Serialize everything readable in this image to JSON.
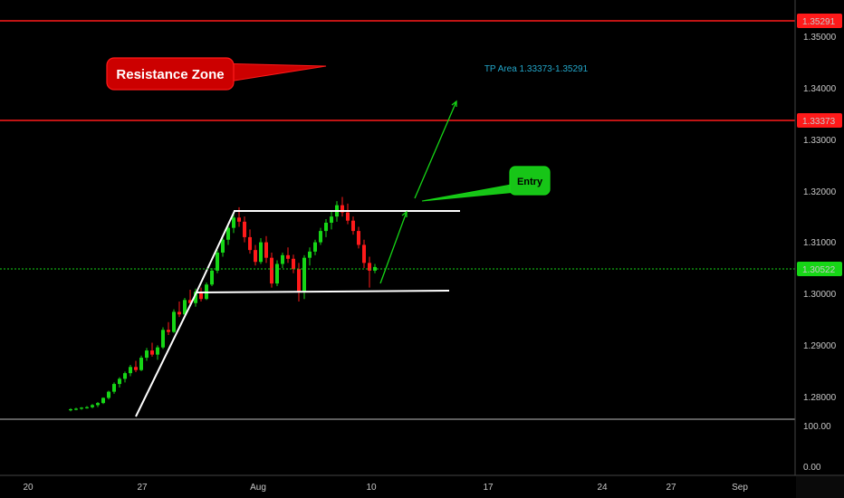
{
  "chart_data": {
    "type": "candlestick",
    "x_ticks": [
      "20",
      "27",
      "Aug",
      "10",
      "17",
      "24",
      "27",
      "Sep"
    ],
    "price_ticks": [
      "1.35000",
      "1.34000",
      "1.33000",
      "1.32000",
      "1.31000",
      "1.30000",
      "1.29000",
      "1.28000"
    ],
    "ylim": [
      1.275,
      1.3565
    ],
    "indicator_ticks": [
      "100.00",
      "0.00"
    ],
    "levels": [
      {
        "label": "1.35291",
        "value": 1.35291,
        "color": "#ff1a1a",
        "style": "solid"
      },
      {
        "label": "1.33373",
        "value": 1.33373,
        "color": "#ff1a1a",
        "style": "solid"
      },
      {
        "label": "1.30522",
        "value": 1.30522,
        "color": "#16d616",
        "style": "dotted"
      }
    ],
    "channel": {
      "top": 1.3164,
      "bottom": 1.3008
    },
    "annotations": {
      "resistance": "Resistance Zone",
      "tp_area": "TP Area 1.33373-1.35291",
      "entry": "Entry"
    },
    "candles": [
      [
        1.2775,
        1.2778,
        1.2772,
        1.2776
      ],
      [
        1.2776,
        1.2779,
        1.2774,
        1.2777
      ],
      [
        1.2777,
        1.278,
        1.2775,
        1.2779
      ],
      [
        1.2779,
        1.2782,
        1.2777,
        1.278
      ],
      [
        1.278,
        1.2786,
        1.2778,
        1.2784
      ],
      [
        1.2784,
        1.279,
        1.278,
        1.2788
      ],
      [
        1.2788,
        1.2799,
        1.2786,
        1.2798
      ],
      [
        1.2798,
        1.2812,
        1.2795,
        1.281
      ],
      [
        1.281,
        1.2828,
        1.2806,
        1.2825
      ],
      [
        1.2825,
        1.2838,
        1.2818,
        1.2835
      ],
      [
        1.2835,
        1.2849,
        1.2828,
        1.2846
      ],
      [
        1.2846,
        1.2862,
        1.284,
        1.2858
      ],
      [
        1.2858,
        1.287,
        1.2848,
        1.2852
      ],
      [
        1.2852,
        1.288,
        1.285,
        1.2876
      ],
      [
        1.2876,
        1.2895,
        1.287,
        1.289
      ],
      [
        1.289,
        1.2905,
        1.2878,
        1.2882
      ],
      [
        1.2882,
        1.29,
        1.2872,
        1.2896
      ],
      [
        1.2896,
        1.2935,
        1.2893,
        1.293
      ],
      [
        1.293,
        1.2945,
        1.292,
        1.2926
      ],
      [
        1.2926,
        1.297,
        1.2924,
        1.2965
      ],
      [
        1.2965,
        1.2985,
        1.2955,
        1.296
      ],
      [
        1.296,
        1.2992,
        1.2955,
        1.2988
      ],
      [
        1.2988,
        1.3008,
        1.2978,
        1.2982
      ],
      [
        1.2982,
        1.301,
        1.2975,
        1.3004
      ],
      [
        1.3004,
        1.3012,
        1.2985,
        1.299
      ],
      [
        1.299,
        1.3022,
        1.2988,
        1.3018
      ],
      [
        1.3018,
        1.305,
        1.3015,
        1.3045
      ],
      [
        1.3045,
        1.3085,
        1.304,
        1.308
      ],
      [
        1.308,
        1.311,
        1.3072,
        1.3105
      ],
      [
        1.3105,
        1.3135,
        1.3095,
        1.3128
      ],
      [
        1.3128,
        1.3155,
        1.3118,
        1.3148
      ],
      [
        1.3148,
        1.3168,
        1.313,
        1.314
      ],
      [
        1.314,
        1.315,
        1.31,
        1.311
      ],
      [
        1.311,
        1.3125,
        1.3078,
        1.3085
      ],
      [
        1.3085,
        1.3095,
        1.3055,
        1.3062
      ],
      [
        1.3062,
        1.3108,
        1.3058,
        1.31
      ],
      [
        1.31,
        1.3112,
        1.306,
        1.307
      ],
      [
        1.307,
        1.308,
        1.3012,
        1.302
      ],
      [
        1.302,
        1.3065,
        1.3015,
        1.3058
      ],
      [
        1.3058,
        1.308,
        1.305,
        1.3075
      ],
      [
        1.3075,
        1.309,
        1.306,
        1.3068
      ],
      [
        1.3068,
        1.3076,
        1.304,
        1.3048
      ],
      [
        1.3048,
        1.306,
        1.2985,
        1.3005
      ],
      [
        1.3005,
        1.3075,
        1.299,
        1.307
      ],
      [
        1.307,
        1.309,
        1.3055,
        1.3082
      ],
      [
        1.3082,
        1.3105,
        1.3075,
        1.31
      ],
      [
        1.31,
        1.3128,
        1.3095,
        1.3122
      ],
      [
        1.3122,
        1.3145,
        1.311,
        1.3138
      ],
      [
        1.3138,
        1.316,
        1.3125,
        1.315
      ],
      [
        1.315,
        1.318,
        1.314,
        1.3172
      ],
      [
        1.3172,
        1.3188,
        1.315,
        1.3158
      ],
      [
        1.3158,
        1.3175,
        1.3135,
        1.3142
      ],
      [
        1.3142,
        1.315,
        1.3115,
        1.3122
      ],
      [
        1.3122,
        1.313,
        1.3088,
        1.3095
      ],
      [
        1.3095,
        1.3105,
        1.305,
        1.306
      ],
      [
        1.306,
        1.3072,
        1.3012,
        1.3045
      ],
      [
        1.3045,
        1.3058,
        1.304,
        1.3052
      ]
    ]
  }
}
